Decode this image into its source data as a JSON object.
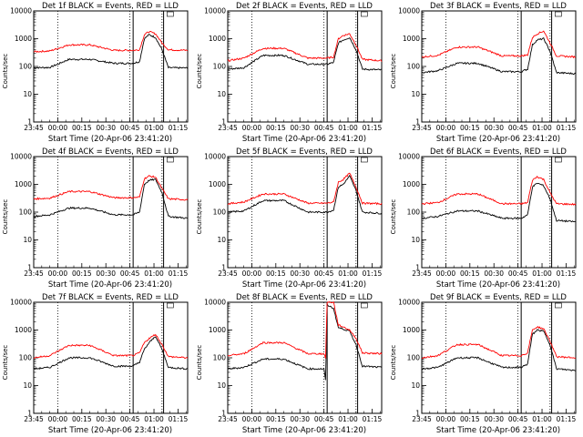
{
  "chart_data": {
    "type": "line",
    "layout": "3x3 grid",
    "y_scale": "log",
    "ylim": [
      1,
      10000
    ],
    "ylabel": "Counts/sec",
    "xlabel": "Start Time (20-Apr-06 23:41:20)",
    "x_tick_labels": [
      "23:45",
      "00:00",
      "00:15",
      "00:30",
      "00:45",
      "01:00",
      "01:15"
    ],
    "y_tick_labels": [
      "1",
      "10",
      "100",
      "1000",
      "10000"
    ],
    "legend_box_label": "",
    "colors": {
      "events": "#000000",
      "lld": "#ff0000"
    },
    "panels": [
      {
        "title": "Det 1f BLACK = Events, RED = LLD",
        "series": [
          {
            "name": "Events",
            "x_minutes": [
              0,
              10,
              22,
              35,
              50,
              62,
              66,
              69,
              72,
              76,
              80,
              84,
              96
            ],
            "values": [
              90,
              92,
              180,
              180,
              130,
              130,
              150,
              1000,
              1400,
              1100,
              400,
              90,
              88
            ]
          },
          {
            "name": "LLD",
            "x_minutes": [
              0,
              10,
              22,
              35,
              50,
              62,
              66,
              69,
              72,
              76,
              80,
              84,
              96
            ],
            "values": [
              340,
              360,
              600,
              600,
              380,
              380,
              400,
              1400,
              1800,
              1500,
              700,
              400,
              380
            ]
          }
        ]
      },
      {
        "title": "Det 2f BLACK = Events, RED = LLD",
        "series": [
          {
            "name": "Events",
            "x_minutes": [
              0,
              10,
              22,
              35,
              50,
              62,
              66,
              69,
              72,
              76,
              80,
              84,
              96
            ],
            "values": [
              80,
              90,
              250,
              250,
              120,
              120,
              140,
              700,
              900,
              1100,
              400,
              80,
              75
            ]
          },
          {
            "name": "LLD",
            "x_minutes": [
              0,
              10,
              22,
              35,
              50,
              62,
              66,
              69,
              72,
              76,
              80,
              84,
              96
            ],
            "values": [
              160,
              200,
              450,
              450,
              200,
              200,
              220,
              1000,
              1300,
              1500,
              600,
              180,
              160
            ]
          }
        ]
      },
      {
        "title": "Det 3f BLACK = Events, RED = LLD",
        "series": [
          {
            "name": "Events",
            "x_minutes": [
              0,
              10,
              22,
              35,
              50,
              62,
              66,
              69,
              72,
              76,
              80,
              84,
              96
            ],
            "values": [
              60,
              70,
              130,
              130,
              65,
              65,
              80,
              600,
              900,
              1000,
              350,
              60,
              55
            ]
          },
          {
            "name": "LLD",
            "x_minutes": [
              0,
              10,
              22,
              35,
              50,
              62,
              66,
              69,
              72,
              76,
              80,
              84,
              96
            ],
            "values": [
              220,
              250,
              500,
              500,
              240,
              240,
              260,
              1100,
              1500,
              1900,
              700,
              240,
              220
            ]
          }
        ]
      },
      {
        "title": "Det 4f BLACK = Events, RED = LLD",
        "series": [
          {
            "name": "Events",
            "x_minutes": [
              0,
              10,
              22,
              35,
              50,
              62,
              66,
              69,
              72,
              76,
              80,
              84,
              96
            ],
            "values": [
              70,
              80,
              140,
              140,
              80,
              80,
              100,
              1000,
              1400,
              1500,
              500,
              70,
              60
            ]
          },
          {
            "name": "LLD",
            "x_minutes": [
              0,
              10,
              22,
              35,
              50,
              62,
              66,
              69,
              72,
              76,
              80,
              84,
              96
            ],
            "values": [
              300,
              320,
              550,
              550,
              330,
              330,
              350,
              1600,
              2000,
              1800,
              700,
              300,
              280
            ]
          }
        ]
      },
      {
        "title": "Det 5f BLACK = Events, RED = LLD",
        "series": [
          {
            "name": "Events",
            "x_minutes": [
              0,
              10,
              22,
              35,
              50,
              62,
              66,
              69,
              72,
              76,
              80,
              84,
              96
            ],
            "values": [
              100,
              110,
              260,
              260,
              100,
              100,
              120,
              800,
              1000,
              2000,
              600,
              100,
              90
            ]
          },
          {
            "name": "LLD",
            "x_minutes": [
              0,
              10,
              22,
              35,
              50,
              62,
              66,
              69,
              72,
              76,
              80,
              84,
              96
            ],
            "values": [
              200,
              230,
              450,
              450,
              210,
              210,
              230,
              1200,
              1500,
              2500,
              800,
              210,
              200
            ]
          }
        ]
      },
      {
        "title": "Det 6f BLACK = Events, RED = LLD",
        "series": [
          {
            "name": "Events",
            "x_minutes": [
              0,
              10,
              22,
              35,
              50,
              62,
              66,
              69,
              72,
              76,
              80,
              84,
              96
            ],
            "values": [
              60,
              70,
              110,
              110,
              60,
              60,
              80,
              800,
              1100,
              900,
              300,
              50,
              45
            ]
          },
          {
            "name": "LLD",
            "x_minutes": [
              0,
              10,
              22,
              35,
              50,
              62,
              66,
              69,
              72,
              76,
              80,
              84,
              96
            ],
            "values": [
              200,
              220,
              450,
              450,
              200,
              200,
              220,
              1400,
              1900,
              1500,
              500,
              200,
              190
            ]
          }
        ]
      },
      {
        "title": "Det 7f BLACK = Events, RED = LLD",
        "series": [
          {
            "name": "Events",
            "x_minutes": [
              0,
              10,
              22,
              35,
              50,
              62,
              66,
              69,
              72,
              76,
              80,
              84,
              96
            ],
            "values": [
              40,
              45,
              100,
              100,
              50,
              50,
              70,
              200,
              350,
              600,
              200,
              45,
              40
            ]
          },
          {
            "name": "LLD",
            "x_minutes": [
              0,
              10,
              22,
              35,
              50,
              62,
              66,
              69,
              72,
              76,
              80,
              84,
              96
            ],
            "values": [
              100,
              120,
              280,
              280,
              120,
              120,
              150,
              350,
              500,
              700,
              300,
              110,
              100
            ]
          }
        ]
      },
      {
        "title": "Det 8f BLACK = Events, RED = LLD",
        "series": [
          {
            "name": "Events",
            "x_minutes": [
              0,
              10,
              22,
              35,
              50,
              60,
              61,
              62,
              66,
              69,
              72,
              76,
              80,
              84,
              96
            ],
            "values": [
              40,
              45,
              90,
              90,
              40,
              40,
              15,
              8000,
              6000,
              1200,
              1100,
              900,
              300,
              50,
              45
            ]
          },
          {
            "name": "LLD",
            "x_minutes": [
              0,
              10,
              22,
              35,
              50,
              60,
              61,
              62,
              66,
              69,
              72,
              76,
              80,
              84,
              96
            ],
            "values": [
              120,
              140,
              350,
              350,
              140,
              140,
              100,
              10000,
              10000,
              1500,
              1300,
              1000,
              500,
              150,
              140
            ]
          }
        ]
      },
      {
        "title": "Det 9f BLACK = Events, RED = LLD",
        "series": [
          {
            "name": "Events",
            "x_minutes": [
              0,
              10,
              22,
              35,
              50,
              62,
              66,
              69,
              72,
              76,
              80,
              84,
              96
            ],
            "values": [
              40,
              45,
              100,
              100,
              45,
              45,
              60,
              700,
              1000,
              900,
              300,
              40,
              35
            ]
          },
          {
            "name": "LLD",
            "x_minutes": [
              0,
              10,
              22,
              35,
              50,
              62,
              66,
              69,
              72,
              76,
              80,
              84,
              96
            ],
            "values": [
              100,
              120,
              300,
              300,
              120,
              120,
              150,
              1000,
              1300,
              1100,
              400,
              110,
              100
            ]
          }
        ]
      }
    ]
  }
}
